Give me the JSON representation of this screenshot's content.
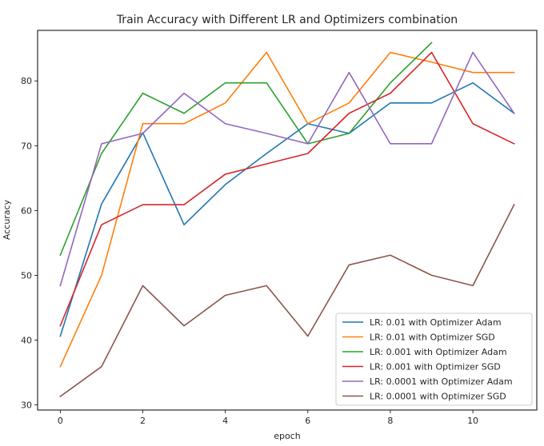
{
  "chart_data": {
    "type": "line",
    "title": "Train Accuracy with Different LR and Optimizers combination",
    "xlabel": "epoch",
    "ylabel": "Accuracy",
    "x": [
      0,
      1,
      2,
      3,
      4,
      5,
      6,
      7,
      8,
      9,
      10,
      11
    ],
    "xlim": [
      -0.55,
      11.55
    ],
    "ylim": [
      29.2,
      87.8
    ],
    "xticks": [
      "0",
      "2",
      "4",
      "6",
      "8",
      "10"
    ],
    "yticks": [
      "30",
      "40",
      "50",
      "60",
      "70",
      "80"
    ],
    "grid": false,
    "legend_position": "lower-right",
    "series": [
      {
        "name": "LR: 0.01 with Optimizer Adam",
        "color": "#1f77b4",
        "values": [
          40.6,
          61.0,
          72.0,
          57.8,
          64.0,
          68.8,
          73.4,
          71.9,
          76.6,
          76.6,
          79.7,
          75.0
        ]
      },
      {
        "name": "LR: 0.01 with Optimizer SGD",
        "color": "#ff7f0e",
        "values": [
          35.9,
          50.0,
          73.4,
          73.4,
          76.6,
          84.4,
          73.4,
          76.6,
          84.4,
          82.9,
          81.3,
          81.3
        ]
      },
      {
        "name": "LR: 0.001 with Optimizer Adam",
        "color": "#2ca02c",
        "values": [
          53.1,
          68.8,
          78.1,
          75.0,
          79.7,
          79.7,
          70.3,
          71.9,
          79.7,
          85.9,
          null,
          null
        ]
      },
      {
        "name": "LR: 0.001 with Optimizer SGD",
        "color": "#d62728",
        "values": [
          42.2,
          57.8,
          60.9,
          60.9,
          65.6,
          67.2,
          68.8,
          75.0,
          78.1,
          84.4,
          73.4,
          70.3
        ]
      },
      {
        "name": "LR: 0.0001 with Optimizer Adam",
        "color": "#9467bd",
        "values": [
          48.4,
          70.3,
          71.9,
          78.1,
          73.4,
          71.9,
          70.3,
          81.3,
          70.3,
          70.3,
          84.4,
          75.0
        ]
      },
      {
        "name": "LR: 0.0001 with Optimizer SGD",
        "color": "#8c564b",
        "values": [
          31.3,
          35.9,
          48.4,
          42.2,
          46.9,
          48.4,
          40.6,
          51.6,
          53.1,
          50.0,
          48.4,
          60.9
        ]
      }
    ]
  }
}
